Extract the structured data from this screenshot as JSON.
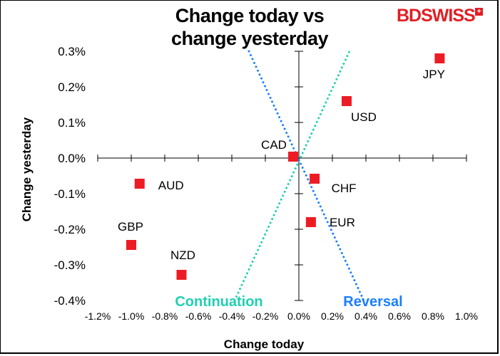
{
  "chart_data": {
    "type": "scatter",
    "title": "Change today vs change yesterday",
    "title_lines": [
      "Change today vs",
      "change yesterday"
    ],
    "xlabel": "Change today",
    "ylabel": "Change yesterday",
    "xlim": [
      -1.2,
      1.0
    ],
    "ylim": [
      -0.4,
      0.3
    ],
    "x_ticks": [
      "-1.2%",
      "-1.0%",
      "-0.8%",
      "-0.6%",
      "-0.4%",
      "-0.2%",
      "0.0%",
      "0.2%",
      "0.4%",
      "0.6%",
      "0.8%",
      "1.0%"
    ],
    "y_ticks": [
      "0.3%",
      "0.2%",
      "0.1%",
      "0.0%",
      "-0.1%",
      "-0.2%",
      "-0.3%",
      "-0.4%"
    ],
    "grid": false,
    "points": [
      {
        "label": "JPY",
        "x": 0.84,
        "y": 0.28
      },
      {
        "label": "USD",
        "x": 0.285,
        "y": 0.16
      },
      {
        "label": "CAD",
        "x": -0.034,
        "y": 0.004
      },
      {
        "label": "CHF",
        "x": 0.094,
        "y": -0.058
      },
      {
        "label": "EUR",
        "x": 0.072,
        "y": -0.18
      },
      {
        "label": "AUD",
        "x": -0.95,
        "y": -0.072
      },
      {
        "label": "GBP",
        "x": -1.0,
        "y": -0.244
      },
      {
        "label": "NZD",
        "x": -0.7,
        "y": -0.328
      }
    ],
    "reference_lines": [
      {
        "label": "Continuation",
        "color": "#1fd1b0",
        "from": [
          -0.383,
          -0.4
        ],
        "to": [
          0.302,
          0.3
        ]
      },
      {
        "label": "Reversal",
        "color": "#1a7fff",
        "from": [
          -0.298,
          0.3
        ],
        "to": [
          0.387,
          -0.4
        ]
      }
    ],
    "marker_color": "#ed1c24"
  },
  "logo": {
    "text": "BDSWISS",
    "color": "#e31e24"
  }
}
